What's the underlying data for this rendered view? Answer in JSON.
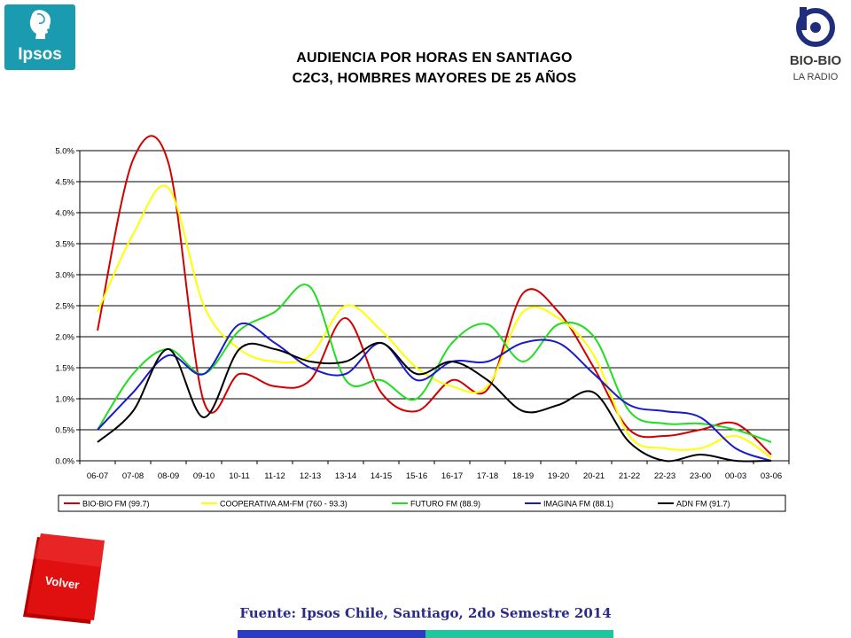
{
  "logos": {
    "ipsos_text": "Ipsos",
    "biobio_text": "BIO-BIO",
    "biobio_sub": "LA RADIO"
  },
  "title_line1": "AUDIENCIA POR HORAS EN SANTIAGO",
  "title_line2": "C2C3, HOMBRES MAYORES DE 25 AÑOS",
  "volver_label": "Volver",
  "source": "Fuente: Ipsos Chile, Santiago, 2do Semestre 2014",
  "chart_data": {
    "type": "line",
    "categories": [
      "06-07",
      "07-08",
      "08-09",
      "09-10",
      "10-11",
      "11-12",
      "12-13",
      "13-14",
      "14-15",
      "15-16",
      "16-17",
      "17-18",
      "18-19",
      "19-20",
      "20-21",
      "21-22",
      "22-23",
      "23-00",
      "00-03",
      "03-06"
    ],
    "ylim": [
      0,
      5.0
    ],
    "yticks": [
      "0.0%",
      "0.5%",
      "1.0%",
      "1.5%",
      "2.0%",
      "2.5%",
      "3.0%",
      "3.5%",
      "4.0%",
      "4.5%",
      "5.0%"
    ],
    "grid": true,
    "legend_position": "bottom",
    "series": [
      {
        "name": "BIO-BIO FM (99.7)",
        "color": "#d40000",
        "values": [
          2.1,
          4.85,
          4.8,
          0.95,
          1.4,
          1.2,
          1.3,
          2.3,
          1.1,
          0.8,
          1.3,
          1.15,
          2.7,
          2.4,
          1.5,
          0.5,
          0.4,
          0.5,
          0.6,
          0.1
        ]
      },
      {
        "name": "COOPERATIVA AM-FM (760 - 93.3)",
        "color": "#ffff00",
        "values": [
          2.4,
          3.65,
          4.4,
          2.5,
          1.8,
          1.6,
          1.7,
          2.5,
          2.1,
          1.5,
          1.2,
          1.2,
          2.4,
          2.3,
          1.7,
          0.4,
          0.2,
          0.2,
          0.4,
          0.05
        ]
      },
      {
        "name": "FUTURO FM (88.9)",
        "color": "#22dd22",
        "values": [
          0.5,
          1.4,
          1.8,
          1.4,
          2.1,
          2.4,
          2.8,
          1.3,
          1.3,
          1.0,
          1.9,
          2.2,
          1.6,
          2.2,
          2.0,
          0.8,
          0.6,
          0.6,
          0.5,
          0.3
        ]
      },
      {
        "name": "IMAGINA FM (88.1)",
        "color": "#1a1acc",
        "values": [
          0.5,
          1.1,
          1.7,
          1.4,
          2.2,
          1.9,
          1.5,
          1.4,
          1.9,
          1.3,
          1.6,
          1.6,
          1.9,
          1.9,
          1.4,
          0.9,
          0.8,
          0.7,
          0.2,
          0.0
        ]
      },
      {
        "name": "ADN FM (91.7)",
        "color": "#000000",
        "values": [
          0.3,
          0.8,
          1.8,
          0.7,
          1.8,
          1.8,
          1.6,
          1.6,
          1.9,
          1.4,
          1.6,
          1.3,
          0.8,
          0.9,
          1.1,
          0.3,
          0.0,
          0.1,
          0.0,
          0.0
        ]
      }
    ]
  }
}
